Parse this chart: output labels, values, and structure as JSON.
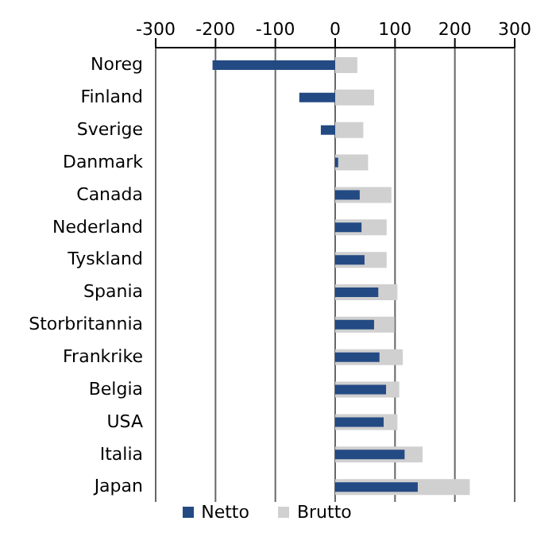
{
  "chart_data": {
    "type": "bar",
    "orientation": "horizontal",
    "categories": [
      "Noreg",
      "Finland",
      "Sverige",
      "Danmark",
      "Canada",
      "Nederland",
      "Tyskland",
      "Spania",
      "Storbritannia",
      "Frankrike",
      "Belgia",
      "USA",
      "Italia",
      "Japan"
    ],
    "series": [
      {
        "name": "Netto",
        "color": "#234a83",
        "values": [
          -205,
          -60,
          -24,
          5,
          41,
          44,
          49,
          72,
          65,
          74,
          85,
          81,
          116,
          138
        ]
      },
      {
        "name": "Brutto",
        "color": "#d0d0d0",
        "values": [
          37,
          65,
          47,
          55,
          94,
          86,
          86,
          104,
          99,
          113,
          107,
          104,
          146,
          225
        ]
      }
    ],
    "xlim": [
      -300,
      300
    ],
    "xticks": [
      -300,
      -200,
      -100,
      0,
      100,
      200,
      300
    ],
    "grid": "x",
    "legend": "bottom"
  }
}
